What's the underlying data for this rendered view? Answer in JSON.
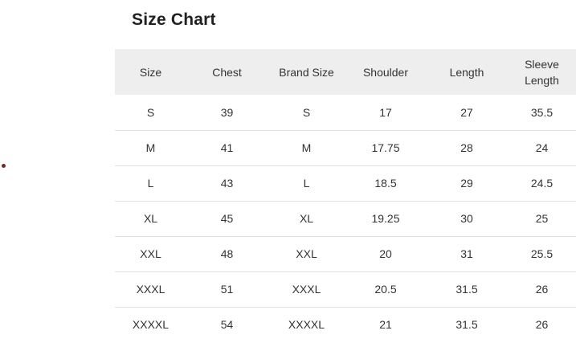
{
  "page": {
    "title": "Size Chart",
    "marker_color": "#6d2c2c"
  },
  "table": {
    "columns": [
      "Size",
      "Chest",
      "Brand Size",
      "Shoulder",
      "Length",
      "Sleeve Length"
    ],
    "rows": [
      [
        "S",
        "39",
        "S",
        "17",
        "27",
        "35.5"
      ],
      [
        "M",
        "41",
        "M",
        "17.75",
        "28",
        "24"
      ],
      [
        "L",
        "43",
        "L",
        "18.5",
        "29",
        "24.5"
      ],
      [
        "XL",
        "45",
        "XL",
        "19.25",
        "30",
        "25"
      ],
      [
        "XXL",
        "48",
        "XXL",
        "20",
        "31",
        "25.5"
      ],
      [
        "XXXL",
        "51",
        "XXXL",
        "20.5",
        "31.5",
        "26"
      ],
      [
        "XXXXL",
        "54",
        "XXXXL",
        "21",
        "31.5",
        "26"
      ]
    ],
    "colors": {
      "header_bg": "#eeeeee",
      "border": "#e0e0e0",
      "text": "#333333",
      "title_text": "#212121"
    }
  }
}
